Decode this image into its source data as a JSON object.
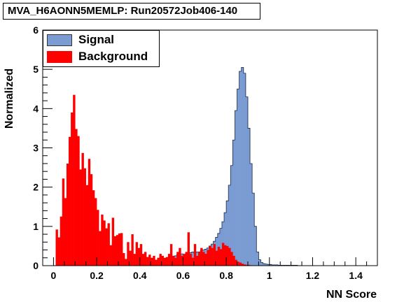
{
  "title": "MVA_H6AONN5MEMLP: Run20572Job406-140",
  "chart_data": {
    "type": "histogram",
    "xlabel": "NN Score",
    "ylabel": "Normalized",
    "xlim": [
      -0.05,
      1.5
    ],
    "ylim": [
      0,
      6
    ],
    "x_ticks": [
      "0",
      "0.2",
      "0.4",
      "0.6",
      "0.8",
      "1",
      "1.2",
      "1.4"
    ],
    "y_ticks": [
      "0",
      "1",
      "2",
      "3",
      "4",
      "5",
      "6"
    ],
    "bin_start": -0.01,
    "bin_width": 0.01,
    "legend_position": "top-left",
    "series": [
      {
        "name": "Signal",
        "color": "#7b9bd3",
        "style": "filled-outline",
        "values": [
          0,
          0,
          0,
          0,
          0,
          0,
          0,
          0,
          0,
          0,
          0,
          0,
          0,
          0,
          0,
          0,
          0,
          0,
          0,
          0,
          0,
          0,
          0,
          0,
          0,
          0,
          0,
          0,
          0,
          0,
          0,
          0,
          0,
          0,
          0,
          0,
          0,
          0,
          0,
          0,
          0,
          0,
          0,
          0,
          0,
          0.05,
          0.05,
          0.08,
          0.08,
          0.1,
          0.1,
          0.12,
          0.12,
          0.15,
          0.18,
          0.2,
          0.22,
          0.25,
          0.28,
          0.3,
          0.3,
          0.28,
          0.3,
          0.3,
          0.33,
          0.35,
          0.32,
          0.35,
          0.35,
          0.38,
          0.4,
          0.42,
          0.45,
          0.5,
          0.55,
          0.62,
          0.72,
          0.82,
          0.95,
          1.12,
          1.35,
          1.65,
          2.05,
          2.55,
          3.2,
          3.95,
          4.5,
          4.95,
          5.05,
          4.9,
          4.3,
          3.5,
          2.6,
          1.85,
          1.0,
          0.35,
          0.15,
          0.08,
          0.05,
          0.04,
          0.03,
          0.03,
          0.02,
          0.02,
          0.02,
          0.01,
          0.01,
          0.01,
          0.01,
          0.01,
          0.01,
          0.01,
          0.01,
          0.01,
          0,
          0,
          0,
          0,
          0,
          0,
          0,
          0,
          0,
          0,
          0,
          0,
          0,
          0,
          0,
          0,
          0,
          0,
          0,
          0,
          0,
          0,
          0,
          0,
          0,
          0,
          0,
          0,
          0,
          0,
          0,
          0,
          0,
          0,
          0,
          0,
          0,
          0,
          0,
          0,
          0
        ]
      },
      {
        "name": "Background",
        "color": "#ff0000",
        "style": "filled",
        "values": [
          0,
          0,
          0.92,
          0.72,
          1.25,
          2.22,
          1.72,
          2.6,
          3.28,
          3.9,
          4.35,
          3.48,
          3.3,
          2.45,
          2.87,
          2.48,
          2.05,
          2.72,
          2.33,
          1.92,
          1.72,
          1.42,
          0.88,
          1.3,
          1.15,
          0.95,
          1.08,
          0.52,
          1.22,
          0.75,
          0.78,
          0.82,
          0.83,
          0.32,
          0.17,
          0.6,
          0.38,
          0.8,
          0.3,
          0.6,
          0.45,
          0.55,
          0.3,
          0.35,
          0.22,
          0.28,
          0.2,
          0.25,
          0.15,
          0.2,
          0.3,
          0.25,
          0.2,
          0.22,
          0.3,
          0.55,
          0.25,
          0.2,
          0.35,
          0.45,
          0.25,
          0.3,
          0.35,
          0.85,
          0.3,
          0.2,
          0.55,
          0.25,
          0.35,
          0.45,
          0.35,
          0.3,
          0.4,
          0.5,
          0.45,
          0.55,
          0.38,
          0.48,
          0.42,
          0.58,
          0.52,
          0.5,
          0.45,
          0.35,
          0.25,
          0.15,
          0.1,
          0.08,
          0.05,
          0.03,
          0.02,
          0.02,
          0.01,
          0,
          0,
          0,
          0,
          0,
          0,
          0,
          0,
          0,
          0,
          0,
          0,
          0,
          0,
          0,
          0,
          0,
          0,
          0,
          0,
          0,
          0,
          0,
          0,
          0,
          0,
          0,
          0,
          0,
          0,
          0,
          0,
          0,
          0,
          0,
          0,
          0,
          0,
          0,
          0,
          0,
          0,
          0,
          0,
          0,
          0,
          0,
          0,
          0,
          0,
          0,
          0,
          0,
          0,
          0,
          0,
          0,
          0,
          0,
          0,
          0,
          0,
          0,
          0,
          0,
          0,
          0,
          0,
          0
        ]
      }
    ]
  }
}
